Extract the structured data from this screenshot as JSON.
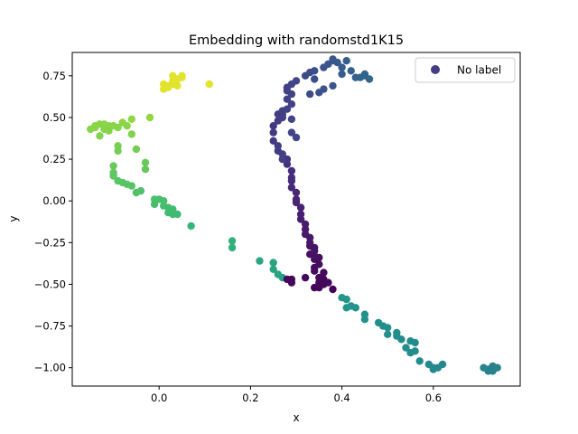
{
  "chart_data": {
    "type": "scatter",
    "title": "Embedding with randomstd1K15",
    "xlabel": "x",
    "ylabel": "y",
    "xlim": [
      -0.19,
      0.79
    ],
    "ylim": [
      -1.11,
      0.89
    ],
    "xticks": [
      0.0,
      0.2,
      0.4,
      0.6
    ],
    "xtick_labels": [
      "0.0",
      "0.2",
      "0.4",
      "0.6"
    ],
    "yticks": [
      -1.0,
      -0.75,
      -0.5,
      -0.25,
      0.0,
      0.25,
      0.5,
      0.75
    ],
    "ytick_labels": [
      "−1.00",
      "−0.75",
      "−0.50",
      "−0.25",
      "0.00",
      "0.25",
      "0.50",
      "0.75"
    ],
    "grid": false,
    "legend": {
      "position": "upper right",
      "entries": [
        "No label"
      ],
      "marker_color": "#433e85"
    },
    "colormap": "viridis",
    "series": [
      {
        "name": "No label",
        "points": [
          [
            0.01,
            0.67
          ],
          [
            0.02,
            0.69
          ],
          [
            0.03,
            0.7
          ],
          [
            0.03,
            0.72
          ],
          [
            0.04,
            0.73
          ],
          [
            0.05,
            0.74
          ],
          [
            0.03,
            0.75
          ],
          [
            0.05,
            0.75
          ],
          [
            0.11,
            0.7
          ],
          [
            0.02,
            0.68
          ],
          [
            0.01,
            0.7
          ],
          [
            0.04,
            0.69
          ],
          [
            -0.02,
            0.5
          ],
          [
            -0.06,
            0.49
          ],
          [
            -0.08,
            0.47
          ],
          [
            -0.11,
            0.45
          ],
          [
            -0.13,
            0.46
          ],
          [
            -0.14,
            0.44
          ],
          [
            -0.15,
            0.43
          ],
          [
            -0.12,
            0.46
          ],
          [
            -0.1,
            0.45
          ],
          [
            -0.09,
            0.44
          ],
          [
            -0.06,
            0.4
          ],
          [
            -0.05,
            0.31
          ],
          [
            -0.09,
            0.33
          ],
          [
            -0.13,
            0.39
          ],
          [
            -0.12,
            0.43
          ],
          [
            -0.11,
            0.42
          ],
          [
            -0.14,
            0.45
          ],
          [
            -0.07,
            0.45
          ],
          [
            -0.09,
            0.3
          ],
          [
            -0.03,
            0.23
          ],
          [
            -0.03,
            0.19
          ],
          [
            -0.1,
            0.21
          ],
          [
            -0.1,
            0.17
          ],
          [
            -0.09,
            0.12
          ],
          [
            -0.1,
            0.15
          ],
          [
            -0.08,
            0.11
          ],
          [
            -0.07,
            0.1
          ],
          [
            -0.06,
            0.09
          ],
          [
            -0.05,
            0.05
          ],
          [
            -0.04,
            0.06
          ],
          [
            -0.01,
            0.01
          ],
          [
            -0.01,
            -0.02
          ],
          [
            0.0,
            0.01
          ],
          [
            0.01,
            -0.03
          ],
          [
            0.01,
            0.0
          ],
          [
            0.02,
            -0.04
          ],
          [
            0.03,
            -0.05
          ],
          [
            0.02,
            -0.07
          ],
          [
            0.03,
            -0.08
          ],
          [
            0.04,
            -0.08
          ],
          [
            0.07,
            -0.15
          ],
          [
            0.16,
            -0.24
          ],
          [
            0.16,
            -0.28
          ],
          [
            0.22,
            -0.36
          ],
          [
            0.25,
            -0.37
          ],
          [
            0.25,
            -0.41
          ],
          [
            0.26,
            -0.44
          ],
          [
            0.27,
            -0.46
          ],
          [
            0.28,
            -0.47
          ],
          [
            0.29,
            -0.47
          ],
          [
            0.29,
            -0.49
          ],
          [
            0.32,
            -0.46
          ],
          [
            0.34,
            -0.52
          ],
          [
            0.35,
            -0.52
          ],
          [
            0.38,
            -0.53
          ],
          [
            0.4,
            -0.58
          ],
          [
            0.41,
            -0.59
          ],
          [
            0.41,
            -0.64
          ],
          [
            0.42,
            -0.63
          ],
          [
            0.43,
            -0.64
          ],
          [
            0.45,
            -0.68
          ],
          [
            0.45,
            -0.71
          ],
          [
            0.48,
            -0.73
          ],
          [
            0.49,
            -0.75
          ],
          [
            0.5,
            -0.76
          ],
          [
            0.5,
            -0.8
          ],
          [
            0.52,
            -0.81
          ],
          [
            0.52,
            -0.79
          ],
          [
            0.53,
            -0.83
          ],
          [
            0.54,
            -0.88
          ],
          [
            0.55,
            -0.84
          ],
          [
            0.56,
            -0.85
          ],
          [
            0.56,
            -0.9
          ],
          [
            0.55,
            -0.91
          ],
          [
            0.57,
            -0.96
          ],
          [
            0.59,
            -0.98
          ],
          [
            0.6,
            -1.0
          ],
          [
            0.61,
            -1.0
          ],
          [
            0.62,
            -0.98
          ],
          [
            0.6,
            -1.01
          ],
          [
            0.71,
            -1.0
          ],
          [
            0.72,
            -1.01
          ],
          [
            0.73,
            -1.0
          ],
          [
            0.74,
            -1.0
          ],
          [
            0.73,
            -1.02
          ],
          [
            0.72,
            -1.02
          ],
          [
            0.73,
            -0.99
          ],
          [
            0.35,
            -0.49
          ],
          [
            0.36,
            -0.5
          ],
          [
            0.37,
            -0.49
          ],
          [
            0.36,
            -0.47
          ],
          [
            0.35,
            -0.46
          ],
          [
            0.36,
            -0.43
          ],
          [
            0.34,
            -0.42
          ],
          [
            0.34,
            -0.4
          ],
          [
            0.35,
            -0.38
          ],
          [
            0.34,
            -0.35
          ],
          [
            0.35,
            -0.34
          ],
          [
            0.34,
            -0.33
          ],
          [
            0.33,
            -0.32
          ],
          [
            0.34,
            -0.3
          ],
          [
            0.34,
            -0.28
          ],
          [
            0.33,
            -0.27
          ],
          [
            0.33,
            -0.25
          ],
          [
            0.33,
            -0.22
          ],
          [
            0.32,
            -0.2
          ],
          [
            0.32,
            -0.17
          ],
          [
            0.32,
            -0.14
          ],
          [
            0.31,
            -0.11
          ],
          [
            0.31,
            -0.08
          ],
          [
            0.31,
            -0.04
          ],
          [
            0.3,
            -0.01
          ],
          [
            0.3,
            0.01
          ],
          [
            0.3,
            0.05
          ],
          [
            0.29,
            0.08
          ],
          [
            0.29,
            0.12
          ],
          [
            0.29,
            0.14
          ],
          [
            0.29,
            0.18
          ],
          [
            0.28,
            0.22
          ],
          [
            0.28,
            0.25
          ],
          [
            0.27,
            0.28
          ],
          [
            0.26,
            0.3
          ],
          [
            0.26,
            0.33
          ],
          [
            0.25,
            0.36
          ],
          [
            0.25,
            0.41
          ],
          [
            0.25,
            0.45
          ],
          [
            0.26,
            0.48
          ],
          [
            0.27,
            0.52
          ],
          [
            0.26,
            0.52
          ],
          [
            0.27,
            0.54
          ],
          [
            0.28,
            0.55
          ],
          [
            0.29,
            0.58
          ],
          [
            0.28,
            0.61
          ],
          [
            0.29,
            0.64
          ],
          [
            0.28,
            0.66
          ],
          [
            0.28,
            0.68
          ],
          [
            0.29,
            0.7
          ],
          [
            0.3,
            0.72
          ],
          [
            0.32,
            0.75
          ],
          [
            0.33,
            0.77
          ],
          [
            0.34,
            0.78
          ],
          [
            0.36,
            0.8
          ],
          [
            0.37,
            0.82
          ],
          [
            0.38,
            0.84
          ],
          [
            0.39,
            0.83
          ],
          [
            0.38,
            0.85
          ],
          [
            0.41,
            0.84
          ],
          [
            0.4,
            0.8
          ],
          [
            0.42,
            0.78
          ],
          [
            0.43,
            0.74
          ],
          [
            0.44,
            0.74
          ],
          [
            0.45,
            0.75
          ],
          [
            0.46,
            0.73
          ],
          [
            0.45,
            0.76
          ],
          [
            0.4,
            0.76
          ],
          [
            0.38,
            0.69
          ],
          [
            0.35,
            0.65
          ],
          [
            0.33,
            0.64
          ],
          [
            0.34,
            0.73
          ],
          [
            0.36,
            0.67
          ],
          [
            0.27,
            0.5
          ],
          [
            0.29,
            0.41
          ],
          [
            0.3,
            0.38
          ],
          [
            0.29,
            0.49
          ],
          [
            0.27,
            0.25
          ]
        ]
      }
    ]
  }
}
